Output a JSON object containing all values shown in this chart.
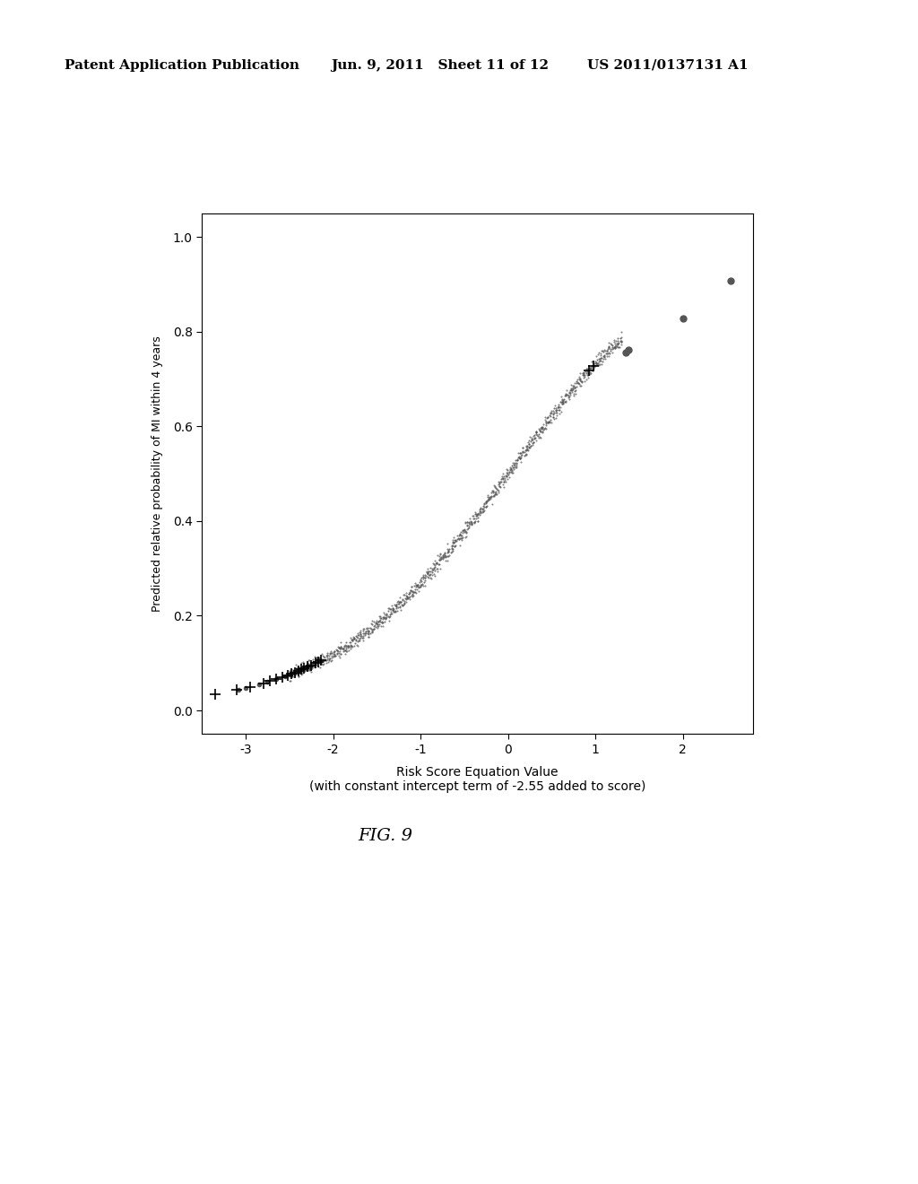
{
  "header_left": "Patent Application Publication",
  "header_mid": "Jun. 9, 2011   Sheet 11 of 12",
  "header_right": "US 2011/0137131 A1",
  "xlabel_line1": "Risk Score Equation Value",
  "xlabel_line2": "(with constant intercept term of -2.55 added to score)",
  "ylabel": "Predicted relative probability of MI within 4 years",
  "figure_label": "FIG. 9",
  "xlim": [
    -3.5,
    2.8
  ],
  "ylim": [
    -0.05,
    1.05
  ],
  "xticks": [
    -3,
    -2,
    -1,
    0,
    1,
    2
  ],
  "yticks": [
    0.0,
    0.2,
    0.4,
    0.6,
    0.8,
    1.0
  ],
  "dot_color": "#555555",
  "plus_color": "#000000",
  "background_color": "#ffffff",
  "header_fontsize": 11,
  "axis_fontsize": 10,
  "ylabel_fontsize": 9,
  "figlabel_fontsize": 14
}
